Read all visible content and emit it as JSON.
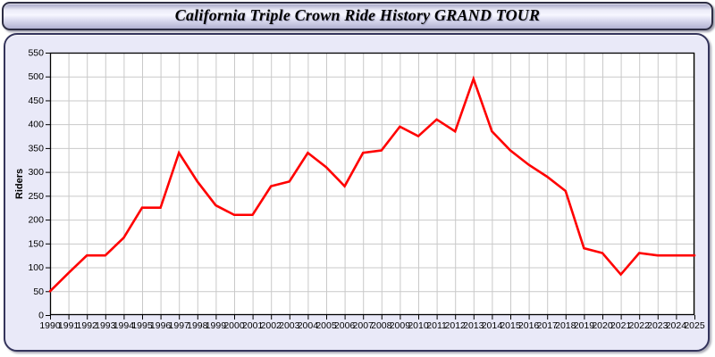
{
  "window": {
    "title": "California Triple Crown Ride History GRAND TOUR"
  },
  "chart_data": {
    "type": "line",
    "title": "California Triple Crown Ride History GRAND TOUR",
    "xlabel": "",
    "ylabel": "Riders",
    "categories": [
      1990,
      1991,
      1992,
      1993,
      1994,
      1995,
      1996,
      1997,
      1998,
      1999,
      2000,
      2001,
      2002,
      2003,
      2004,
      2005,
      2006,
      2007,
      2008,
      2009,
      2010,
      2011,
      2012,
      2013,
      2014,
      2015,
      2016,
      2017,
      2018,
      2019,
      2020,
      2021,
      2022,
      2023,
      2024,
      2025
    ],
    "series": [
      {
        "name": "Riders",
        "color": "#ff0000",
        "values": [
          50,
          88,
          125,
          125,
          162,
          225,
          225,
          340,
          280,
          230,
          210,
          210,
          270,
          280,
          340,
          310,
          270,
          340,
          345,
          395,
          375,
          410,
          385,
          495,
          385,
          345,
          315,
          290,
          260,
          140,
          130,
          85,
          130,
          125,
          125,
          125
        ]
      }
    ],
    "ylim": [
      0,
      550
    ],
    "ytick_step": 50,
    "grid": true,
    "legend": "none",
    "gridline_color": "#c9c9c9",
    "plot_background": "#ffffff",
    "axis_color": "#000000",
    "tick_label_color": "#000000"
  },
  "colors": {
    "page_background": "#ffffff",
    "panel_background": "#e9e9f8",
    "panel_border": "#34345c",
    "line": "#ff0000"
  }
}
